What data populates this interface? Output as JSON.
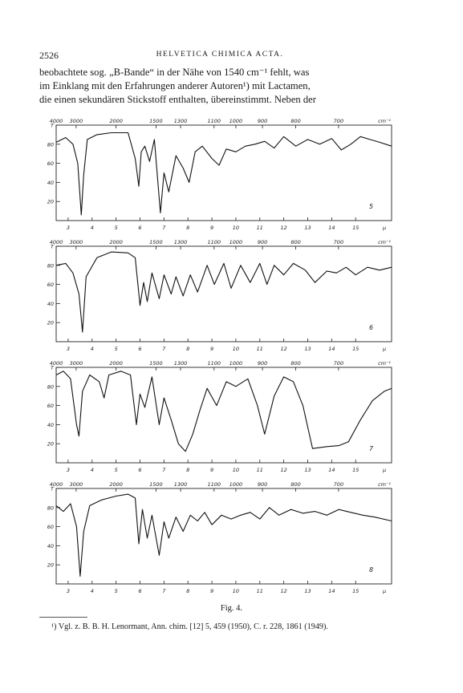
{
  "header": {
    "page_number": "2526",
    "journal": "HELVETICA CHIMICA ACTA."
  },
  "body_lines": [
    "beobachtete sog. „B-Bande“ in der Nähe von 1540 cm⁻¹ fehlt, was",
    "im Einklang mit den Erfahrungen anderer Autoren¹) mit Lactamen,",
    "die einen sekundären Stickstoff enthalten, übereinstimmt. Neben der"
  ],
  "chart_data": [
    {
      "type": "line",
      "label": "5",
      "top_ticks": [
        "4000",
        "3000",
        "2000",
        "1500",
        "1300",
        "1100",
        "1000",
        "900",
        "800",
        "700",
        "cm⁻¹"
      ],
      "bottom_ticks": [
        "3",
        "4",
        "5",
        "6",
        "7",
        "8",
        "9",
        "10",
        "11",
        "12",
        "13",
        "14",
        "15",
        "μ"
      ],
      "y_ticks": [
        "T",
        "80",
        "60",
        "40",
        "20"
      ],
      "xlim": [
        2.5,
        16.5
      ],
      "ylim": [
        0,
        100
      ],
      "x": [
        2.5,
        2.9,
        3.2,
        3.4,
        3.55,
        3.65,
        3.8,
        4.2,
        4.8,
        5.5,
        5.8,
        5.95,
        6.05,
        6.2,
        6.4,
        6.6,
        6.85,
        7.0,
        7.2,
        7.5,
        7.8,
        8.05,
        8.3,
        8.6,
        9.0,
        9.3,
        9.6,
        10.0,
        10.4,
        10.8,
        11.2,
        11.6,
        12.0,
        12.5,
        13.0,
        13.5,
        14.0,
        14.4,
        14.8,
        15.2,
        15.6,
        16.0,
        16.5
      ],
      "y": [
        82,
        87,
        80,
        60,
        6,
        48,
        85,
        90,
        92,
        92,
        65,
        36,
        72,
        78,
        62,
        85,
        8,
        50,
        30,
        68,
        55,
        40,
        72,
        78,
        65,
        58,
        75,
        72,
        78,
        80,
        83,
        76,
        88,
        78,
        85,
        80,
        86,
        74,
        80,
        88,
        85,
        82,
        78
      ]
    },
    {
      "type": "line",
      "label": "6",
      "top_ticks": [
        "4000",
        "3000",
        "2000",
        "1500",
        "1300",
        "1100",
        "1000",
        "900",
        "800",
        "700",
        "cm⁻¹"
      ],
      "bottom_ticks": [
        "3",
        "4",
        "5",
        "6",
        "7",
        "8",
        "9",
        "10",
        "11",
        "12",
        "13",
        "14",
        "15",
        "μ"
      ],
      "y_ticks": [
        "T",
        "80",
        "60",
        "40",
        "20"
      ],
      "xlim": [
        2.5,
        16.5
      ],
      "ylim": [
        0,
        100
      ],
      "x": [
        2.5,
        2.9,
        3.2,
        3.45,
        3.6,
        3.75,
        4.2,
        4.8,
        5.5,
        5.8,
        6.0,
        6.15,
        6.3,
        6.5,
        6.8,
        7.0,
        7.3,
        7.5,
        7.8,
        8.1,
        8.4,
        8.8,
        9.1,
        9.5,
        9.8,
        10.2,
        10.6,
        11.0,
        11.3,
        11.6,
        12.0,
        12.4,
        12.9,
        13.3,
        13.8,
        14.2,
        14.6,
        15.0,
        15.5,
        16.0,
        16.5
      ],
      "y": [
        80,
        82,
        72,
        50,
        10,
        68,
        88,
        94,
        93,
        88,
        38,
        62,
        42,
        72,
        45,
        70,
        50,
        68,
        48,
        70,
        52,
        80,
        60,
        82,
        56,
        80,
        62,
        82,
        60,
        80,
        70,
        82,
        75,
        62,
        74,
        72,
        78,
        70,
        78,
        75,
        78
      ]
    },
    {
      "type": "line",
      "label": "7",
      "top_ticks": [
        "4000",
        "3000",
        "2000",
        "1500",
        "1300",
        "1100",
        "1000",
        "900",
        "800",
        "700",
        "cm⁻¹"
      ],
      "bottom_ticks": [
        "3",
        "4",
        "5",
        "6",
        "7",
        "8",
        "9",
        "10",
        "11",
        "12",
        "13",
        "14",
        "15",
        "μ"
      ],
      "y_ticks": [
        "T",
        "80",
        "60",
        "40",
        "20"
      ],
      "xlim": [
        2.5,
        16.5
      ],
      "ylim": [
        0,
        100
      ],
      "x": [
        2.5,
        2.8,
        3.1,
        3.35,
        3.45,
        3.6,
        3.9,
        4.3,
        4.5,
        4.7,
        5.2,
        5.6,
        5.85,
        6.0,
        6.2,
        6.5,
        6.8,
        7.0,
        7.3,
        7.6,
        7.9,
        8.2,
        8.5,
        8.8,
        9.2,
        9.6,
        10.0,
        10.5,
        10.9,
        11.2,
        11.6,
        12.0,
        12.4,
        12.8,
        13.2,
        13.8,
        14.3,
        14.7,
        15.2,
        15.7,
        16.2,
        16.5
      ],
      "y": [
        92,
        96,
        88,
        40,
        28,
        75,
        92,
        85,
        68,
        92,
        96,
        92,
        40,
        72,
        58,
        90,
        40,
        68,
        45,
        20,
        12,
        30,
        55,
        78,
        60,
        85,
        80,
        88,
        60,
        30,
        70,
        90,
        85,
        60,
        15,
        17,
        18,
        22,
        45,
        65,
        75,
        78
      ]
    },
    {
      "type": "line",
      "label": "8",
      "top_ticks": [
        "4000",
        "3000",
        "2000",
        "1500",
        "1300",
        "1100",
        "1000",
        "900",
        "800",
        "700",
        "cm⁻¹"
      ],
      "bottom_ticks": [
        "3",
        "4",
        "5",
        "6",
        "7",
        "8",
        "9",
        "10",
        "11",
        "12",
        "13",
        "14",
        "15",
        "μ"
      ],
      "y_ticks": [
        "T",
        "80",
        "60",
        "40",
        "20"
      ],
      "xlim": [
        2.5,
        16.5
      ],
      "ylim": [
        0,
        100
      ],
      "x": [
        2.5,
        2.8,
        3.1,
        3.35,
        3.5,
        3.65,
        3.9,
        4.4,
        5.0,
        5.5,
        5.8,
        5.95,
        6.1,
        6.3,
        6.5,
        6.8,
        7.0,
        7.2,
        7.5,
        7.8,
        8.1,
        8.4,
        8.7,
        9.0,
        9.4,
        9.8,
        10.2,
        10.6,
        11.0,
        11.4,
        11.8,
        12.3,
        12.8,
        13.3,
        13.8,
        14.3,
        14.8,
        15.3,
        15.8,
        16.5
      ],
      "y": [
        82,
        76,
        84,
        60,
        8,
        55,
        82,
        88,
        92,
        94,
        90,
        42,
        78,
        48,
        72,
        30,
        65,
        48,
        70,
        55,
        72,
        66,
        75,
        62,
        72,
        68,
        72,
        75,
        68,
        80,
        72,
        78,
        74,
        76,
        72,
        78,
        75,
        72,
        70,
        66
      ]
    }
  ],
  "caption": "Fig. 4.",
  "footnote": {
    "mark": "¹)",
    "text": " Vgl. z. B. B. H. Lenormant, Ann. chim. [12] 5, 459 (1950), C. r. 228, 1861 (1949)."
  }
}
